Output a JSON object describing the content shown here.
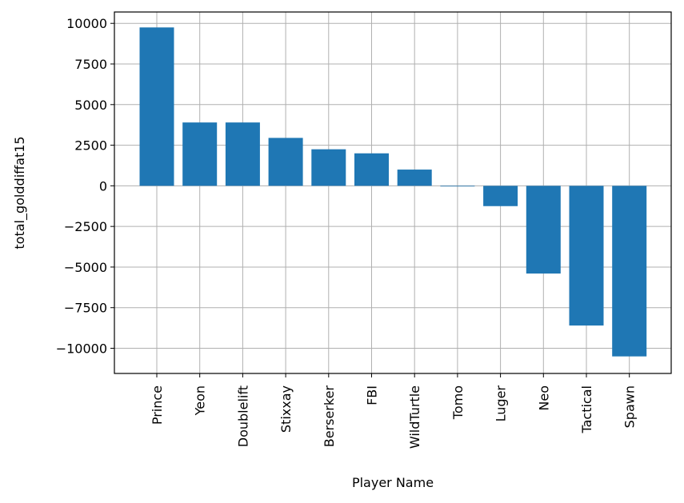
{
  "chart_data": {
    "type": "bar",
    "categories": [
      "Prince",
      "Yeon",
      "Doublelift",
      "Stixxay",
      "Berserker",
      "FBI",
      "WildTurtle",
      "Tomo",
      "Luger",
      "Neo",
      "Tactical",
      "Spawn"
    ],
    "values": [
      9750,
      3900,
      3900,
      2950,
      2250,
      2000,
      1000,
      0,
      -1250,
      -5400,
      -8600,
      -10500
    ],
    "xlabel": "Player Name",
    "ylabel": "total_golddiffat15",
    "ylim": [
      -11550,
      10700
    ],
    "yticks": [
      10000,
      7500,
      5000,
      2500,
      0,
      -2500,
      -5000,
      -7500,
      -10000
    ],
    "ytick_labels": [
      "10000",
      "7500",
      "5000",
      "2500",
      "0",
      "−2500",
      "−5000",
      "−7500",
      "−10000"
    ],
    "grid": true,
    "bar_color": "#1f77b4"
  }
}
